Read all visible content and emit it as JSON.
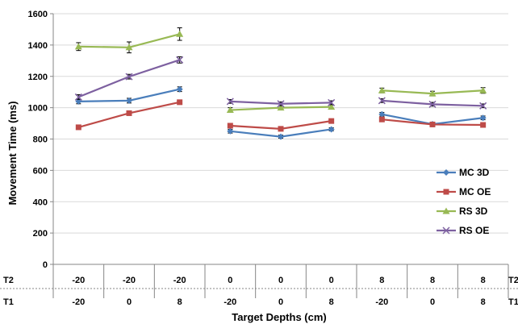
{
  "chart_data": {
    "type": "line",
    "xlabel": "Target Depths (cm)",
    "ylabel": "Movement Time (ms)",
    "ylim": [
      0,
      1600
    ],
    "yticks": [
      0,
      200,
      400,
      600,
      800,
      1000,
      1200,
      1400,
      1600
    ],
    "grid": true,
    "legend_position": "right",
    "category_rows": [
      {
        "name": "T2",
        "labels": [
          "-20",
          "-20",
          "-20",
          "0",
          "0",
          "0",
          "8",
          "8",
          "8"
        ]
      },
      {
        "name": "T1",
        "labels": [
          "-20",
          "0",
          "8",
          "-20",
          "0",
          "8",
          "-20",
          "0",
          "8"
        ]
      }
    ],
    "groups": [
      [
        0,
        1,
        2
      ],
      [
        3,
        4,
        5
      ],
      [
        6,
        7,
        8
      ]
    ],
    "series": [
      {
        "name": "MC 3D",
        "color": "#4a7ebb",
        "marker": "diamond",
        "values": [
          1040,
          1045,
          1118,
          850,
          815,
          862,
          958,
          895,
          935
        ],
        "errors": [
          15,
          15,
          15,
          12,
          10,
          10,
          12,
          10,
          12
        ]
      },
      {
        "name": "MC OE",
        "color": "#be4b48",
        "marker": "square",
        "values": [
          875,
          965,
          1035,
          885,
          865,
          915,
          925,
          893,
          890
        ],
        "errors": [
          10,
          10,
          12,
          10,
          10,
          10,
          10,
          10,
          10
        ]
      },
      {
        "name": "RS 3D",
        "color": "#98b954",
        "marker": "triangle",
        "values": [
          1390,
          1385,
          1470,
          985,
          1000,
          1005,
          1110,
          1090,
          1110
        ],
        "errors": [
          25,
          35,
          40,
          15,
          12,
          12,
          15,
          15,
          18
        ]
      },
      {
        "name": "RS OE",
        "color": "#7d60a0",
        "marker": "x",
        "values": [
          1068,
          1198,
          1305,
          1040,
          1025,
          1032,
          1045,
          1022,
          1012
        ],
        "errors": [
          15,
          15,
          20,
          12,
          12,
          12,
          12,
          12,
          12
        ]
      }
    ]
  }
}
